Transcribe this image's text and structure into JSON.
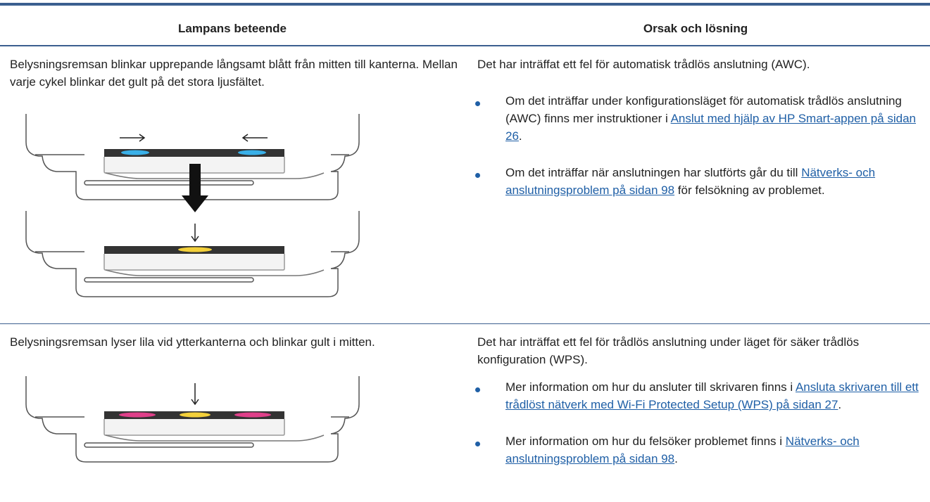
{
  "table": {
    "headers": [
      "Lampans beteende",
      "Orsak och lösning"
    ],
    "rows": [
      {
        "behavior": "Belysningsremsan blinkar upprepande långsamt blått från mitten till kanterna. Mellan varje cykel blinkar det gult på det stora ljusfältet.",
        "cause": "Det har inträffat ett fel för automatisk trådlös anslutning (AWC).",
        "bullets": [
          {
            "text": "Om det inträffar under konfigurationsläget för automatisk trådlös anslutning (AWC) finns mer instruktioner i ",
            "link": "Anslut med hjälp av HP Smart-appen på sidan 26",
            "after": "."
          },
          {
            "text": "Om det inträffar när anslutningen har slutförts går du till ",
            "link": "Nätverks- och anslutningsproblem på sidan 98",
            "after": " för felsökning av problemet."
          }
        ]
      },
      {
        "behavior": "Belysningsremsan lyser lila vid ytterkanterna och blinkar gult i mitten.",
        "cause": "Det har inträffat ett fel för trådlös anslutning under läget för säker trådlös konfiguration (WPS).",
        "bullets": [
          {
            "text": "Mer information om hur du ansluter till skrivaren finns i ",
            "link": "Ansluta skrivaren till ett trådlöst nätverk med Wi-Fi Protected Setup (WPS) på sidan 27",
            "after": "."
          },
          {
            "text": "Mer information om hur du felsöker problemet finns i ",
            "link": "Nätverks- och anslutningsproblem på sidan 98",
            "after": "."
          }
        ]
      }
    ]
  }
}
